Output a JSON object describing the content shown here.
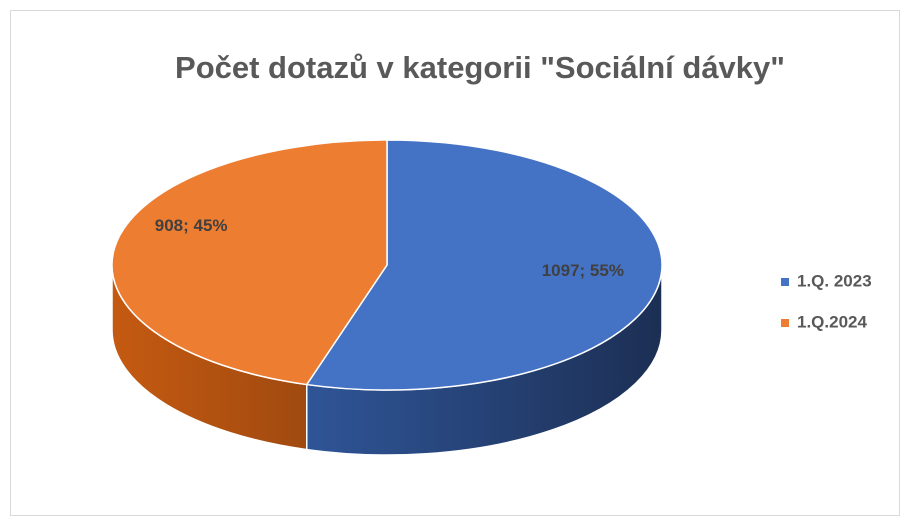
{
  "chart_data": {
    "type": "pie",
    "title": "Počet dotazů v kategorii \"Sociální dávky\"",
    "categories": [
      "1.Q. 2023",
      "1.Q.2024"
    ],
    "values": [
      1097,
      908
    ],
    "value_labels": [
      "1097; 55%",
      "908; 45%"
    ],
    "colors": [
      "#4472c4",
      "#ed7d31"
    ],
    "legend": "right"
  }
}
